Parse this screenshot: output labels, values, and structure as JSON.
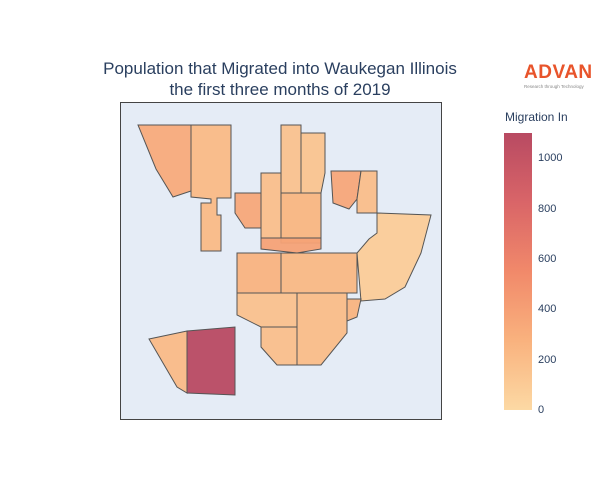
{
  "title": {
    "line1": "Population that Migrated into Waukegan Illinois",
    "line2": "the first three months of 2019"
  },
  "logo": {
    "name": "ADVAN",
    "tagline": "Research through Technology"
  },
  "colorbar": {
    "title": "Migration In",
    "min": 0,
    "max": 1100,
    "ticks": [
      "0",
      "200",
      "400",
      "600",
      "800",
      "1000"
    ],
    "colors": [
      "#fcd9a4",
      "#f9b27e",
      "#f1896a",
      "#d96568",
      "#b84a62"
    ]
  },
  "map": {
    "background": "#e5ecf6",
    "border_color": "#555555",
    "region_values": [
      {
        "id": "northwest-tall",
        "value": 320
      },
      {
        "id": "north-strip",
        "value": 220
      },
      {
        "id": "north-center-a",
        "value": 160
      },
      {
        "id": "north-center-b",
        "value": 150
      },
      {
        "id": "north-center-c",
        "value": 180
      },
      {
        "id": "northeast-a",
        "value": 350
      },
      {
        "id": "northeast-b",
        "value": 190
      },
      {
        "id": "west-mid",
        "value": 340
      },
      {
        "id": "center-mid",
        "value": 250
      },
      {
        "id": "east-large",
        "value": 90
      },
      {
        "id": "center-band",
        "value": 380
      },
      {
        "id": "center-left",
        "value": 270
      },
      {
        "id": "center-right",
        "value": 230
      },
      {
        "id": "south-center-a",
        "value": 170
      },
      {
        "id": "south-center-b",
        "value": 200
      },
      {
        "id": "south-east",
        "value": 260
      },
      {
        "id": "south-west-small",
        "value": 210
      },
      {
        "id": "southwest-max",
        "value": 1100
      },
      {
        "id": "south-tail",
        "value": 180
      }
    ]
  }
}
